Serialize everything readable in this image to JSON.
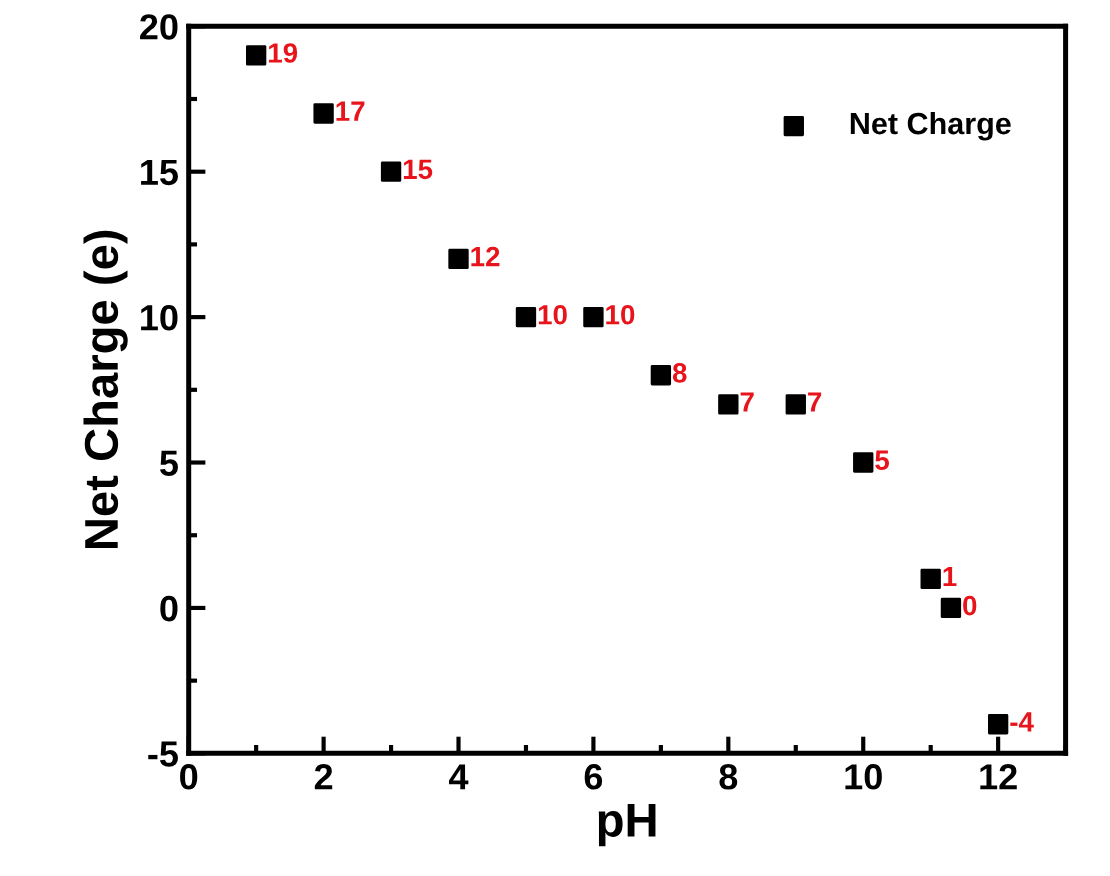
{
  "chart_data": {
    "type": "scatter",
    "xlabel": "pH",
    "ylabel": "Net Charge (e)",
    "x": [
      1,
      2,
      3,
      4,
      5,
      6,
      7,
      8,
      9,
      10,
      11,
      11.3,
      12
    ],
    "series": [
      {
        "name": "Net Charge",
        "color": "#000000",
        "values": [
          19,
          17,
          15,
          12,
          10,
          10,
          8,
          7,
          7,
          5,
          1,
          0,
          -4
        ]
      }
    ],
    "marker": "square",
    "data_labels": true,
    "legend": "top right",
    "grid": false,
    "xlim": [
      0,
      13
    ],
    "xticks": [
      0,
      2,
      4,
      6,
      8,
      10,
      12
    ],
    "ylim": [
      -5,
      20
    ],
    "yticks": [
      -5,
      0,
      5,
      10,
      15,
      20
    ]
  }
}
